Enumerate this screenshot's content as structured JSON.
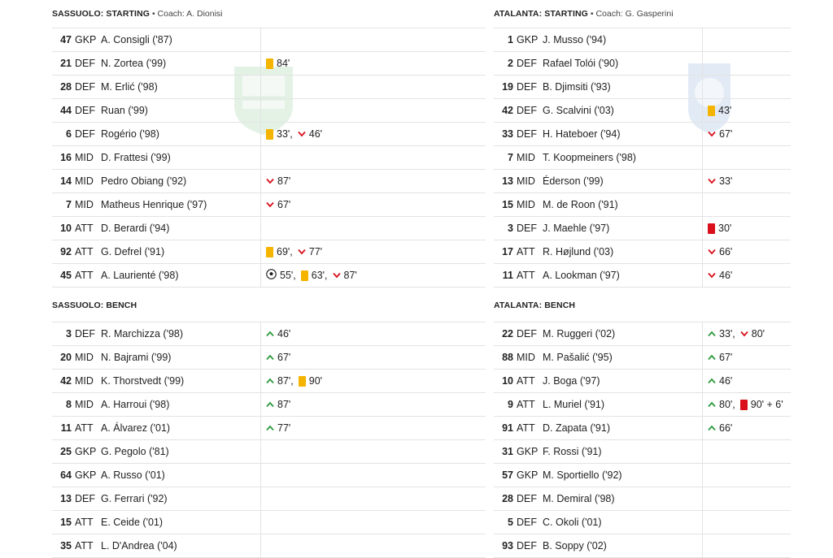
{
  "home": {
    "starting_title": "SASSUOLO: STARTING",
    "coach": "Coach: A. Dionisi",
    "bench_title": "SASSUOLO: BENCH",
    "starting": [
      {
        "num": "47",
        "pos": "GKP",
        "name": "A. Consigli ('87)",
        "events": []
      },
      {
        "num": "21",
        "pos": "DEF",
        "name": "N. Zortea ('99)",
        "events": [
          {
            "type": "yellow",
            "text": "84'"
          }
        ]
      },
      {
        "num": "28",
        "pos": "DEF",
        "name": "M. Erlić ('98)",
        "events": []
      },
      {
        "num": "44",
        "pos": "DEF",
        "name": "Ruan ('99)",
        "events": []
      },
      {
        "num": "6",
        "pos": "DEF",
        "name": "Rogério ('98)",
        "events": [
          {
            "type": "yellow",
            "text": "33',"
          },
          {
            "type": "sub-out",
            "text": "46'"
          }
        ]
      },
      {
        "num": "16",
        "pos": "MID",
        "name": "D. Frattesi ('99)",
        "events": []
      },
      {
        "num": "14",
        "pos": "MID",
        "name": "Pedro Obiang ('92)",
        "events": [
          {
            "type": "sub-out",
            "text": "87'"
          }
        ]
      },
      {
        "num": "7",
        "pos": "MID",
        "name": "Matheus Henrique ('97)",
        "events": [
          {
            "type": "sub-out",
            "text": "67'"
          }
        ]
      },
      {
        "num": "10",
        "pos": "ATT",
        "name": "D. Berardi ('94)",
        "events": []
      },
      {
        "num": "92",
        "pos": "ATT",
        "name": "G. Defrel ('91)",
        "events": [
          {
            "type": "yellow",
            "text": "69',"
          },
          {
            "type": "sub-out",
            "text": "77'"
          }
        ]
      },
      {
        "num": "45",
        "pos": "ATT",
        "name": "A. Laurienté ('98)",
        "events": [
          {
            "type": "goal",
            "text": "55',"
          },
          {
            "type": "yellow",
            "text": "63',"
          },
          {
            "type": "sub-out",
            "text": "87'"
          }
        ]
      }
    ],
    "bench": [
      {
        "num": "3",
        "pos": "DEF",
        "name": "R. Marchizza ('98)",
        "events": [
          {
            "type": "sub-in",
            "text": "46'"
          }
        ]
      },
      {
        "num": "20",
        "pos": "MID",
        "name": "N. Bajrami ('99)",
        "events": [
          {
            "type": "sub-in",
            "text": "67'"
          }
        ]
      },
      {
        "num": "42",
        "pos": "MID",
        "name": "K. Thorstvedt ('99)",
        "events": [
          {
            "type": "sub-in",
            "text": "87',"
          },
          {
            "type": "yellow",
            "text": "90'"
          }
        ]
      },
      {
        "num": "8",
        "pos": "MID",
        "name": "A. Harroui ('98)",
        "events": [
          {
            "type": "sub-in",
            "text": "87'"
          }
        ]
      },
      {
        "num": "11",
        "pos": "ATT",
        "name": "A. Álvarez ('01)",
        "events": [
          {
            "type": "sub-in",
            "text": "77'"
          }
        ]
      },
      {
        "num": "25",
        "pos": "GKP",
        "name": "G. Pegolo ('81)",
        "events": []
      },
      {
        "num": "64",
        "pos": "GKP",
        "name": "A. Russo ('01)",
        "events": []
      },
      {
        "num": "13",
        "pos": "DEF",
        "name": "G. Ferrari ('92)",
        "events": []
      },
      {
        "num": "15",
        "pos": "ATT",
        "name": "E. Ceide ('01)",
        "events": []
      },
      {
        "num": "35",
        "pos": "ATT",
        "name": "L. D'Andrea ('04)",
        "events": []
      }
    ]
  },
  "away": {
    "starting_title": "ATALANTA: STARTING",
    "coach": "Coach: G. Gasperini",
    "bench_title": "ATALANTA: BENCH",
    "starting": [
      {
        "num": "1",
        "pos": "GKP",
        "name": "J. Musso ('94)",
        "events": []
      },
      {
        "num": "2",
        "pos": "DEF",
        "name": "Rafael Tolói ('90)",
        "events": []
      },
      {
        "num": "19",
        "pos": "DEF",
        "name": "B. Djimsiti ('93)",
        "events": []
      },
      {
        "num": "42",
        "pos": "DEF",
        "name": "G. Scalvini ('03)",
        "events": [
          {
            "type": "yellow",
            "text": "43'"
          }
        ]
      },
      {
        "num": "33",
        "pos": "DEF",
        "name": "H. Hateboer ('94)",
        "events": [
          {
            "type": "sub-out",
            "text": "67'"
          }
        ]
      },
      {
        "num": "7",
        "pos": "MID",
        "name": "T. Koopmeiners ('98)",
        "events": []
      },
      {
        "num": "13",
        "pos": "MID",
        "name": "Éderson ('99)",
        "events": [
          {
            "type": "sub-out",
            "text": "33'"
          }
        ]
      },
      {
        "num": "15",
        "pos": "MID",
        "name": "M. de Roon ('91)",
        "events": []
      },
      {
        "num": "3",
        "pos": "DEF",
        "name": "J. Maehle ('97)",
        "events": [
          {
            "type": "red",
            "text": "30'"
          }
        ]
      },
      {
        "num": "17",
        "pos": "ATT",
        "name": "R. Højlund ('03)",
        "events": [
          {
            "type": "sub-out",
            "text": "66'"
          }
        ]
      },
      {
        "num": "11",
        "pos": "ATT",
        "name": "A. Lookman ('97)",
        "events": [
          {
            "type": "sub-out",
            "text": "46'"
          }
        ]
      }
    ],
    "bench": [
      {
        "num": "22",
        "pos": "DEF",
        "name": "M. Ruggeri ('02)",
        "events": [
          {
            "type": "sub-in",
            "text": "33',"
          },
          {
            "type": "sub-out",
            "text": "80'"
          }
        ]
      },
      {
        "num": "88",
        "pos": "MID",
        "name": "M. Pašalić ('95)",
        "events": [
          {
            "type": "sub-in",
            "text": "67'"
          }
        ]
      },
      {
        "num": "10",
        "pos": "ATT",
        "name": "J. Boga ('97)",
        "events": [
          {
            "type": "sub-in",
            "text": "46'"
          }
        ]
      },
      {
        "num": "9",
        "pos": "ATT",
        "name": "L. Muriel ('91)",
        "events": [
          {
            "type": "sub-in",
            "text": "80',"
          },
          {
            "type": "red",
            "text": "90' + 6'"
          }
        ]
      },
      {
        "num": "91",
        "pos": "ATT",
        "name": "D. Zapata ('91)",
        "events": [
          {
            "type": "sub-in",
            "text": "66'"
          }
        ]
      },
      {
        "num": "31",
        "pos": "GKP",
        "name": "F. Rossi ('91)",
        "events": []
      },
      {
        "num": "57",
        "pos": "GKP",
        "name": "M. Sportiello ('92)",
        "events": []
      },
      {
        "num": "28",
        "pos": "DEF",
        "name": "M. Demiral ('98)",
        "events": []
      },
      {
        "num": "5",
        "pos": "DEF",
        "name": "C. Okoli ('01)",
        "events": []
      },
      {
        "num": "93",
        "pos": "DEF",
        "name": "B. Soppy ('02)",
        "events": []
      }
    ]
  },
  "icons": {
    "yellow": "yellow-card-icon",
    "red": "red-card-icon",
    "goal": "goal-ball-icon",
    "sub-in": "sub-in-arrow-icon",
    "sub-out": "sub-out-arrow-icon"
  },
  "colors": {
    "yellow_card": "#f5b400",
    "red_card": "#d9101c",
    "sub_in": "#2e9a3e",
    "sub_out": "#d9101c"
  }
}
